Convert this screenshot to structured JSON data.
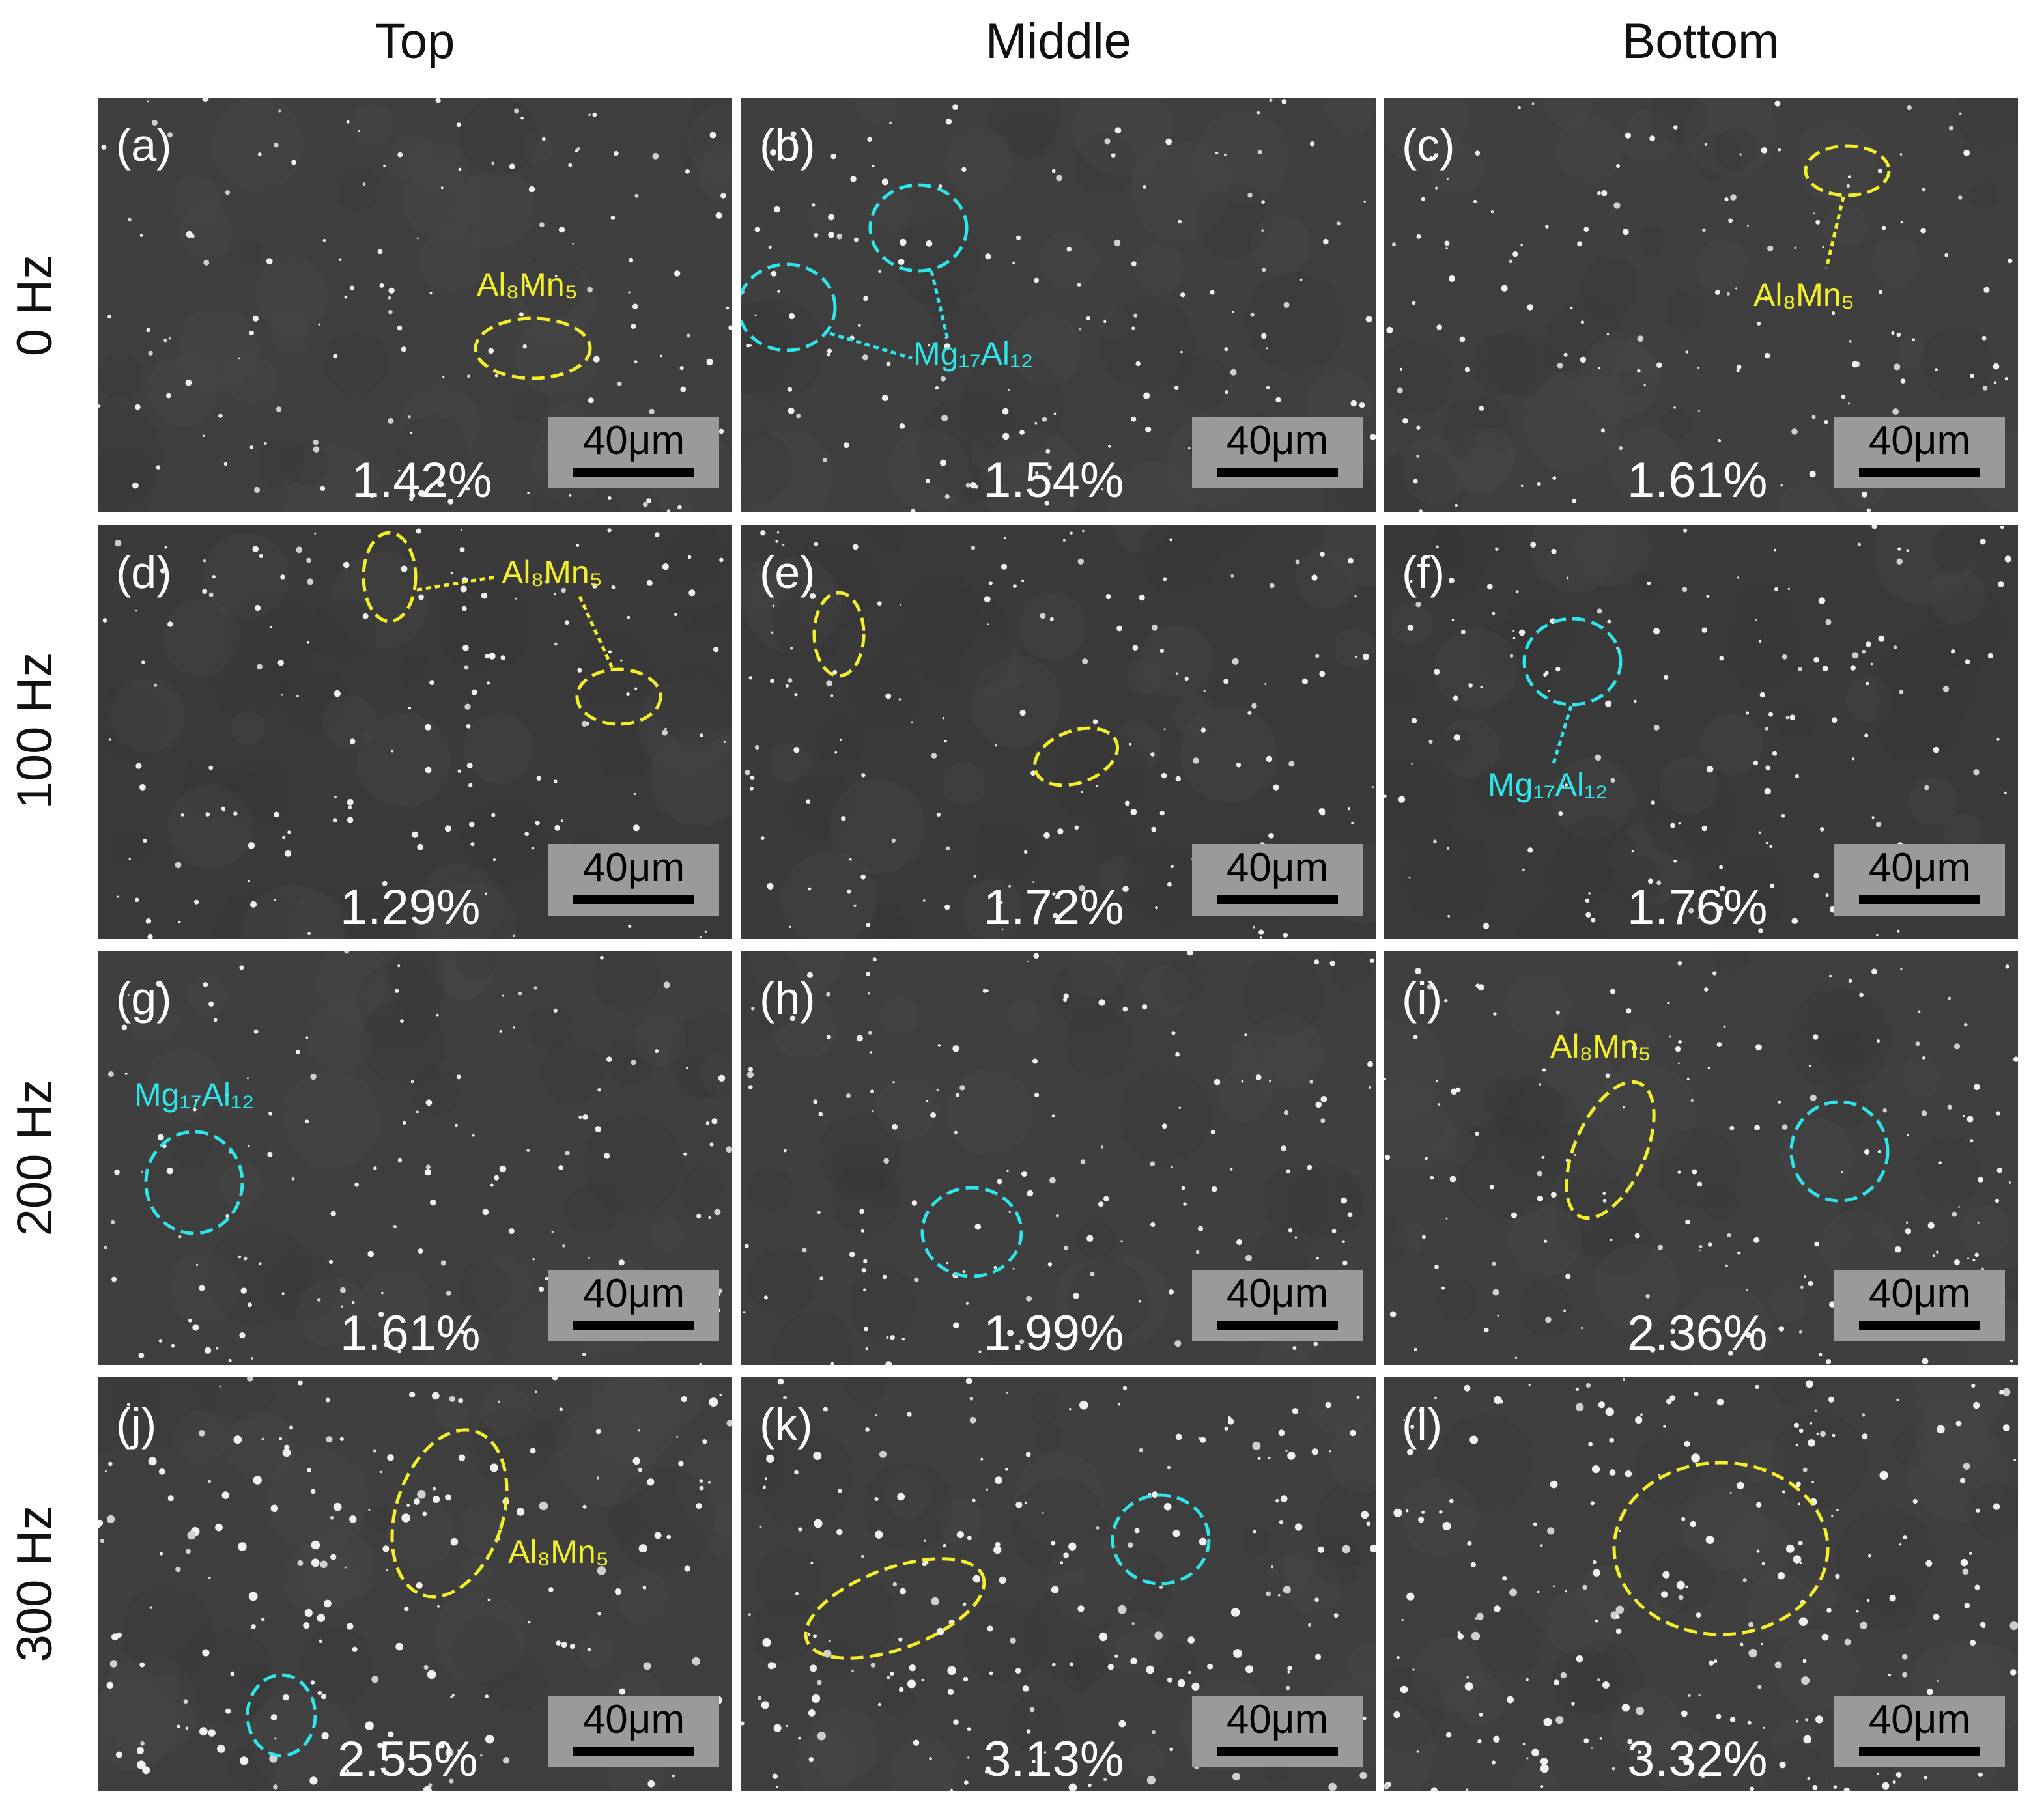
{
  "columns": [
    "Top",
    "Middle",
    "Bottom"
  ],
  "rows": [
    "0 Hz",
    "100 Hz",
    "200 Hz",
    "300 Hz"
  ],
  "scale_bar_label": "40μm",
  "colors": {
    "al8mn5": "#f3ef2a",
    "mg17al12": "#2ee6ea"
  },
  "panels": [
    {
      "label": "(a)",
      "fraction": "1.42%",
      "notes": [
        "Al₈Mn₅"
      ]
    },
    {
      "label": "(b)",
      "fraction": "1.54%",
      "notes": [
        "Mg₁₇Al₁₂"
      ]
    },
    {
      "label": "(c)",
      "fraction": "1.61%",
      "notes": [
        "Al₈Mn₅"
      ]
    },
    {
      "label": "(d)",
      "fraction": "1.29%",
      "notes": [
        "Al₈Mn₅"
      ]
    },
    {
      "label": "(e)",
      "fraction": "1.72%",
      "notes": []
    },
    {
      "label": "(f)",
      "fraction": "1.76%",
      "notes": [
        "Mg₁₇Al₁₂"
      ]
    },
    {
      "label": "(g)",
      "fraction": "1.61%",
      "notes": [
        "Mg₁₇Al₁₂"
      ]
    },
    {
      "label": "(h)",
      "fraction": "1.99%",
      "notes": []
    },
    {
      "label": "(i)",
      "fraction": "2.36%",
      "notes": [
        "Al₈Mn₅"
      ]
    },
    {
      "label": "(j)",
      "fraction": "2.55%",
      "notes": [
        "Al₈Mn₅"
      ]
    },
    {
      "label": "(k)",
      "fraction": "3.13%",
      "notes": []
    },
    {
      "label": "(l)",
      "fraction": "3.32%",
      "notes": []
    }
  ]
}
